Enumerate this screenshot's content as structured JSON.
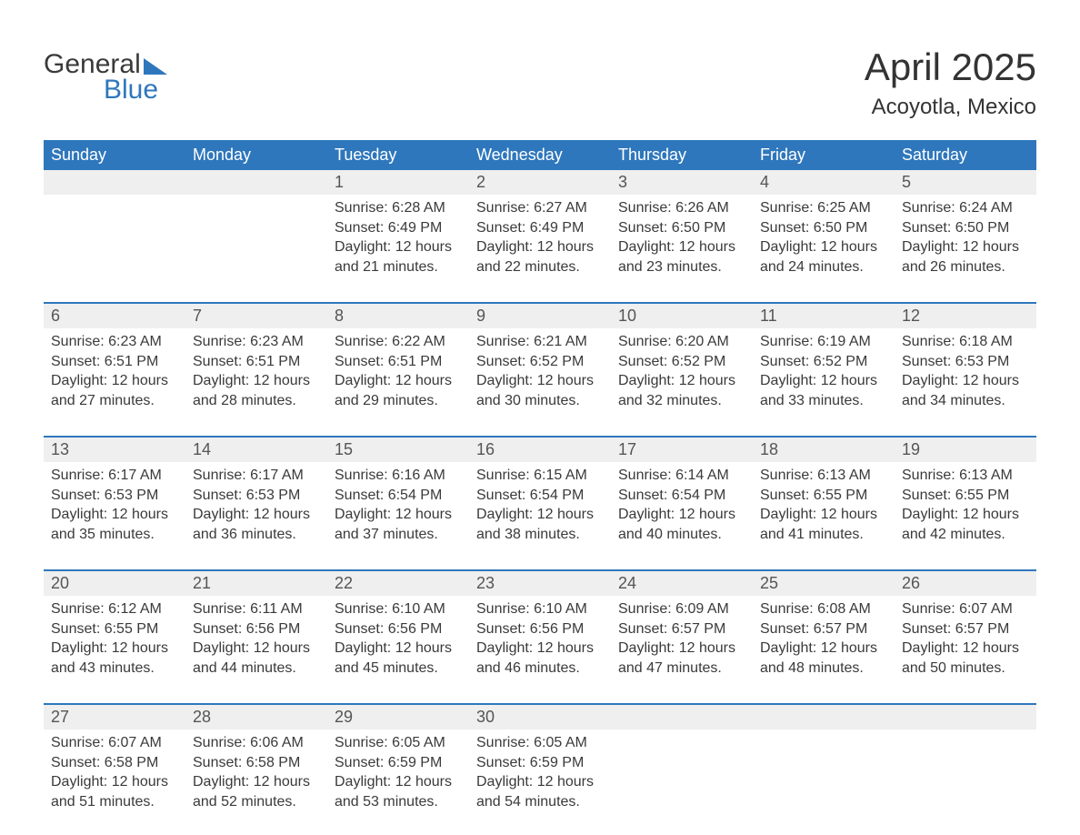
{
  "logo": {
    "text1": "General",
    "text2": "Blue",
    "accent_color": "#2f77bc"
  },
  "title": "April 2025",
  "location": "Acoyotla, Mexico",
  "colors": {
    "header_bg": "#2f77bc",
    "header_fg": "#ffffff",
    "daynum_bg": "#efefef",
    "week_divider": "#2f77bc",
    "text": "#3a3a3a",
    "background": "#ffffff"
  },
  "fonts": {
    "month_title_pt": 42,
    "location_pt": 24,
    "dow_pt": 18,
    "daynum_pt": 18,
    "body_pt": 16
  },
  "daysOfWeek": [
    "Sunday",
    "Monday",
    "Tuesday",
    "Wednesday",
    "Thursday",
    "Friday",
    "Saturday"
  ],
  "labels": {
    "sunrise": "Sunrise:",
    "sunset": "Sunset:",
    "daylight": "Daylight:"
  },
  "weeks": [
    [
      null,
      null,
      {
        "n": "1",
        "sunrise": "6:28 AM",
        "sunset": "6:49 PM",
        "daylight_h": "12",
        "daylight_m": "21"
      },
      {
        "n": "2",
        "sunrise": "6:27 AM",
        "sunset": "6:49 PM",
        "daylight_h": "12",
        "daylight_m": "22"
      },
      {
        "n": "3",
        "sunrise": "6:26 AM",
        "sunset": "6:50 PM",
        "daylight_h": "12",
        "daylight_m": "23"
      },
      {
        "n": "4",
        "sunrise": "6:25 AM",
        "sunset": "6:50 PM",
        "daylight_h": "12",
        "daylight_m": "24"
      },
      {
        "n": "5",
        "sunrise": "6:24 AM",
        "sunset": "6:50 PM",
        "daylight_h": "12",
        "daylight_m": "26"
      }
    ],
    [
      {
        "n": "6",
        "sunrise": "6:23 AM",
        "sunset": "6:51 PM",
        "daylight_h": "12",
        "daylight_m": "27"
      },
      {
        "n": "7",
        "sunrise": "6:23 AM",
        "sunset": "6:51 PM",
        "daylight_h": "12",
        "daylight_m": "28"
      },
      {
        "n": "8",
        "sunrise": "6:22 AM",
        "sunset": "6:51 PM",
        "daylight_h": "12",
        "daylight_m": "29"
      },
      {
        "n": "9",
        "sunrise": "6:21 AM",
        "sunset": "6:52 PM",
        "daylight_h": "12",
        "daylight_m": "30"
      },
      {
        "n": "10",
        "sunrise": "6:20 AM",
        "sunset": "6:52 PM",
        "daylight_h": "12",
        "daylight_m": "32"
      },
      {
        "n": "11",
        "sunrise": "6:19 AM",
        "sunset": "6:52 PM",
        "daylight_h": "12",
        "daylight_m": "33"
      },
      {
        "n": "12",
        "sunrise": "6:18 AM",
        "sunset": "6:53 PM",
        "daylight_h": "12",
        "daylight_m": "34"
      }
    ],
    [
      {
        "n": "13",
        "sunrise": "6:17 AM",
        "sunset": "6:53 PM",
        "daylight_h": "12",
        "daylight_m": "35"
      },
      {
        "n": "14",
        "sunrise": "6:17 AM",
        "sunset": "6:53 PM",
        "daylight_h": "12",
        "daylight_m": "36"
      },
      {
        "n": "15",
        "sunrise": "6:16 AM",
        "sunset": "6:54 PM",
        "daylight_h": "12",
        "daylight_m": "37"
      },
      {
        "n": "16",
        "sunrise": "6:15 AM",
        "sunset": "6:54 PM",
        "daylight_h": "12",
        "daylight_m": "38"
      },
      {
        "n": "17",
        "sunrise": "6:14 AM",
        "sunset": "6:54 PM",
        "daylight_h": "12",
        "daylight_m": "40"
      },
      {
        "n": "18",
        "sunrise": "6:13 AM",
        "sunset": "6:55 PM",
        "daylight_h": "12",
        "daylight_m": "41"
      },
      {
        "n": "19",
        "sunrise": "6:13 AM",
        "sunset": "6:55 PM",
        "daylight_h": "12",
        "daylight_m": "42"
      }
    ],
    [
      {
        "n": "20",
        "sunrise": "6:12 AM",
        "sunset": "6:55 PM",
        "daylight_h": "12",
        "daylight_m": "43"
      },
      {
        "n": "21",
        "sunrise": "6:11 AM",
        "sunset": "6:56 PM",
        "daylight_h": "12",
        "daylight_m": "44"
      },
      {
        "n": "22",
        "sunrise": "6:10 AM",
        "sunset": "6:56 PM",
        "daylight_h": "12",
        "daylight_m": "45"
      },
      {
        "n": "23",
        "sunrise": "6:10 AM",
        "sunset": "6:56 PM",
        "daylight_h": "12",
        "daylight_m": "46"
      },
      {
        "n": "24",
        "sunrise": "6:09 AM",
        "sunset": "6:57 PM",
        "daylight_h": "12",
        "daylight_m": "47"
      },
      {
        "n": "25",
        "sunrise": "6:08 AM",
        "sunset": "6:57 PM",
        "daylight_h": "12",
        "daylight_m": "48"
      },
      {
        "n": "26",
        "sunrise": "6:07 AM",
        "sunset": "6:57 PM",
        "daylight_h": "12",
        "daylight_m": "50"
      }
    ],
    [
      {
        "n": "27",
        "sunrise": "6:07 AM",
        "sunset": "6:58 PM",
        "daylight_h": "12",
        "daylight_m": "51"
      },
      {
        "n": "28",
        "sunrise": "6:06 AM",
        "sunset": "6:58 PM",
        "daylight_h": "12",
        "daylight_m": "52"
      },
      {
        "n": "29",
        "sunrise": "6:05 AM",
        "sunset": "6:59 PM",
        "daylight_h": "12",
        "daylight_m": "53"
      },
      {
        "n": "30",
        "sunrise": "6:05 AM",
        "sunset": "6:59 PM",
        "daylight_h": "12",
        "daylight_m": "54"
      },
      null,
      null,
      null
    ]
  ]
}
